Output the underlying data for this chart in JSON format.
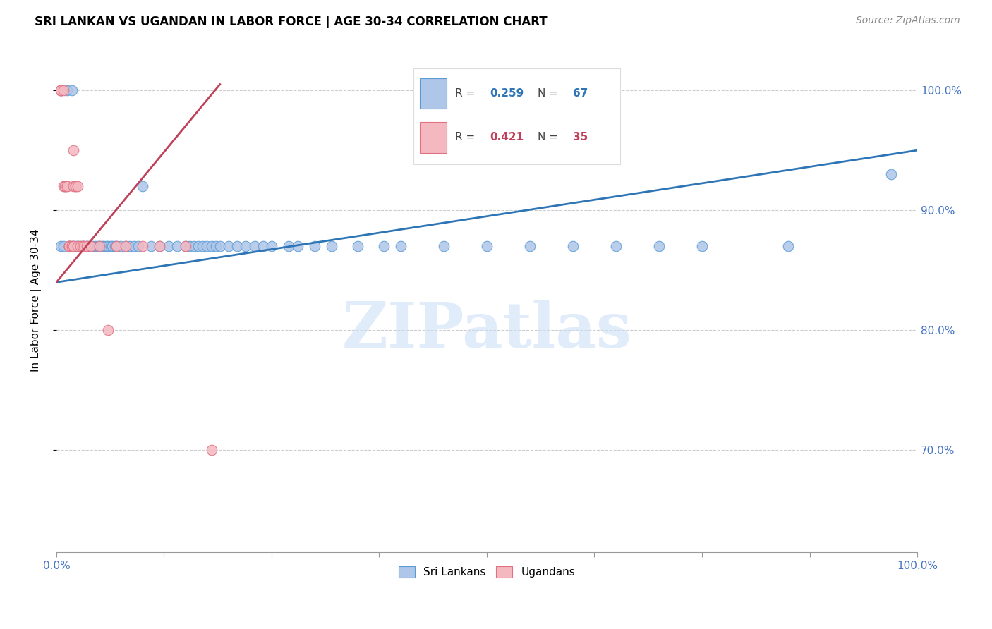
{
  "title": "SRI LANKAN VS UGANDAN IN LABOR FORCE | AGE 30-34 CORRELATION CHART",
  "source": "Source: ZipAtlas.com",
  "ylabel": "In Labor Force | Age 30-34",
  "legend_blue_label": "Sri Lankans",
  "legend_pink_label": "Ugandans",
  "blue_scatter_color": "#aec6e8",
  "blue_edge_color": "#5b9bd5",
  "blue_line_color": "#2e75b6",
  "pink_scatter_color": "#f4b8c1",
  "pink_edge_color": "#e07080",
  "pink_line_color": "#c0405a",
  "legend_blue_r": "0.259",
  "legend_blue_n": "67",
  "legend_pink_r": "0.421",
  "legend_pink_n": "35",
  "blue_x": [
    0.005,
    0.008,
    0.012,
    0.015,
    0.018,
    0.02,
    0.022,
    0.025,
    0.027,
    0.03,
    0.032,
    0.035,
    0.037,
    0.04,
    0.042,
    0.045,
    0.048,
    0.05,
    0.053,
    0.055,
    0.058,
    0.06,
    0.063,
    0.065,
    0.068,
    0.07,
    0.075,
    0.08,
    0.085,
    0.09,
    0.095,
    0.1,
    0.11,
    0.12,
    0.13,
    0.14,
    0.15,
    0.155,
    0.16,
    0.165,
    0.17,
    0.175,
    0.18,
    0.185,
    0.19,
    0.2,
    0.21,
    0.22,
    0.23,
    0.24,
    0.25,
    0.27,
    0.28,
    0.3,
    0.32,
    0.35,
    0.38,
    0.4,
    0.45,
    0.5,
    0.55,
    0.6,
    0.65,
    0.7,
    0.75,
    0.85,
    0.97
  ],
  "blue_y": [
    0.87,
    0.87,
    1.0,
    0.87,
    1.0,
    0.87,
    0.87,
    0.87,
    0.87,
    0.87,
    0.87,
    0.87,
    0.87,
    0.87,
    0.87,
    0.87,
    0.87,
    0.87,
    0.87,
    0.87,
    0.87,
    0.87,
    0.87,
    0.87,
    0.87,
    0.87,
    0.87,
    0.87,
    0.87,
    0.87,
    0.87,
    0.92,
    0.87,
    0.87,
    0.87,
    0.87,
    0.87,
    0.87,
    0.87,
    0.87,
    0.87,
    0.87,
    0.87,
    0.87,
    0.87,
    0.87,
    0.87,
    0.87,
    0.87,
    0.87,
    0.87,
    0.87,
    0.87,
    0.87,
    0.87,
    0.87,
    0.87,
    0.87,
    0.87,
    0.87,
    0.87,
    0.87,
    0.87,
    0.87,
    0.87,
    0.87,
    0.93
  ],
  "pink_x": [
    0.005,
    0.005,
    0.005,
    0.005,
    0.008,
    0.008,
    0.01,
    0.01,
    0.012,
    0.012,
    0.015,
    0.015,
    0.015,
    0.018,
    0.018,
    0.02,
    0.02,
    0.02,
    0.022,
    0.022,
    0.025,
    0.025,
    0.028,
    0.03,
    0.032,
    0.035,
    0.04,
    0.05,
    0.06,
    0.07,
    0.08,
    0.1,
    0.12,
    0.15,
    0.18
  ],
  "pink_y": [
    1.0,
    1.0,
    1.0,
    1.0,
    1.0,
    0.92,
    0.92,
    0.92,
    0.92,
    0.92,
    0.87,
    0.87,
    0.87,
    0.87,
    0.87,
    0.95,
    0.92,
    0.87,
    0.92,
    0.92,
    0.92,
    0.87,
    0.87,
    0.87,
    0.87,
    0.87,
    0.87,
    0.87,
    0.8,
    0.87,
    0.87,
    0.87,
    0.87,
    0.87,
    0.7
  ],
  "blue_line_x0": 0.0,
  "blue_line_y0": 0.84,
  "blue_line_x1": 1.0,
  "blue_line_y1": 0.95,
  "pink_line_x0": 0.0,
  "pink_line_y0": 0.84,
  "pink_line_x1": 0.19,
  "pink_line_y1": 1.005,
  "xmin": 0.0,
  "xmax": 1.0,
  "ymin": 0.615,
  "ymax": 1.035,
  "yticks": [
    1.0,
    0.9,
    0.8,
    0.7
  ],
  "ytick_labels": [
    "100.0%",
    "90.0%",
    "80.0%",
    "70.0%"
  ],
  "watermark_text": "ZIPatlas",
  "background_color": "#ffffff",
  "grid_color": "#cccccc"
}
